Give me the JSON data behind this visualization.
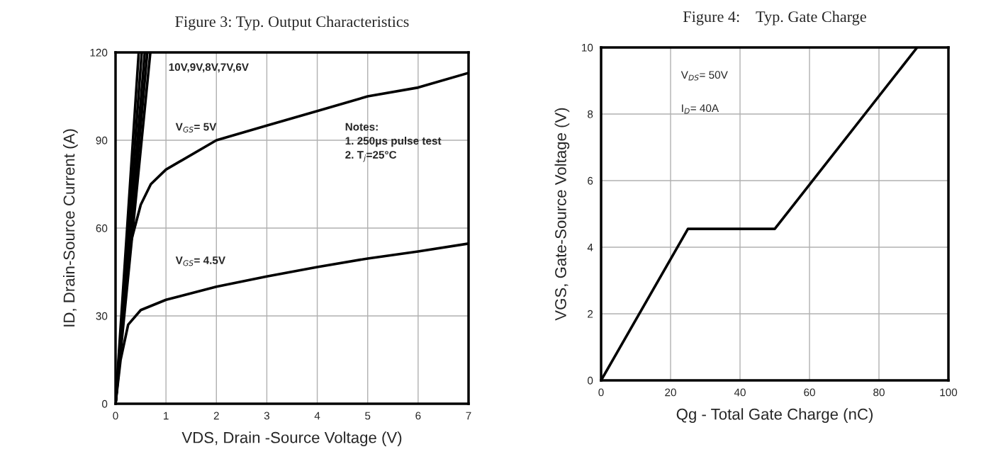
{
  "chart_data": [
    {
      "type": "line",
      "title": "Figure 3: Typ. Output Characteristics",
      "xlabel": "VDS, Drain -Source Voltage (V)",
      "ylabel": "ID, Drain-Source Current (A)",
      "xlim": [
        0,
        7
      ],
      "ylim": [
        0,
        120
      ],
      "xticks": [
        0,
        1,
        2,
        3,
        4,
        5,
        6,
        7
      ],
      "yticks": [
        0,
        30,
        60,
        90,
        120
      ],
      "grid": true,
      "marker": "none",
      "line_style": "solid",
      "series": [
        {
          "color": "#000000",
          "x": [
            0,
            0.46
          ],
          "values": [
            0,
            120
          ]
        },
        {
          "color": "#000000",
          "x": [
            0,
            0.52
          ],
          "values": [
            0,
            120
          ]
        },
        {
          "color": "#000000",
          "x": [
            0,
            0.58
          ],
          "values": [
            0,
            120
          ]
        },
        {
          "color": "#000000",
          "x": [
            0,
            0.63
          ],
          "values": [
            0,
            120
          ]
        },
        {
          "color": "#000000",
          "x": [
            0,
            0.69
          ],
          "values": [
            0,
            120
          ]
        },
        {
          "color": "#000000",
          "x": [
            0,
            0.1,
            0.2,
            0.3,
            0.5,
            0.7,
            1,
            2,
            3,
            4,
            5,
            6,
            7
          ],
          "values": [
            0,
            20,
            40,
            55,
            68,
            75,
            80,
            90,
            95,
            100,
            105,
            108,
            113
          ]
        },
        {
          "color": "#000000",
          "x": [
            0,
            0.1,
            0.25,
            0.5,
            1,
            2,
            3,
            4,
            5,
            6,
            7
          ],
          "values": [
            0,
            15,
            27,
            32,
            35.5,
            40,
            43.5,
            46.7,
            49.6,
            52,
            54.7
          ]
        }
      ],
      "annotations": [
        "10V,9V,8V,7V,6V",
        "V$_{GS}$= 5V",
        "V$_{GS}$= 4.5V",
        "Notes:\n1. 250μs pulse test\n2. T$_{j}$=25°C"
      ]
    },
    {
      "type": "line",
      "title": "Figure 4:    Typ. Gate Charge",
      "xlabel": "Qg - Total Gate Charge (nC)",
      "ylabel": "VGS, Gate-Source Voltage (V)",
      "xlim": [
        0,
        100
      ],
      "ylim": [
        0,
        10
      ],
      "xticks": [
        0,
        20,
        40,
        60,
        80,
        100
      ],
      "yticks": [
        0,
        2,
        4,
        6,
        8,
        10
      ],
      "grid": true,
      "marker": "none",
      "line_style": "solid",
      "series": [
        {
          "color": "#000000",
          "x": [
            0,
            25,
            50,
            91
          ],
          "values": [
            0,
            4.55,
            4.55,
            10
          ]
        }
      ],
      "annotations": [
        "V$_{DS}$= 50V",
        "I$_{D}$= 40A"
      ]
    }
  ]
}
